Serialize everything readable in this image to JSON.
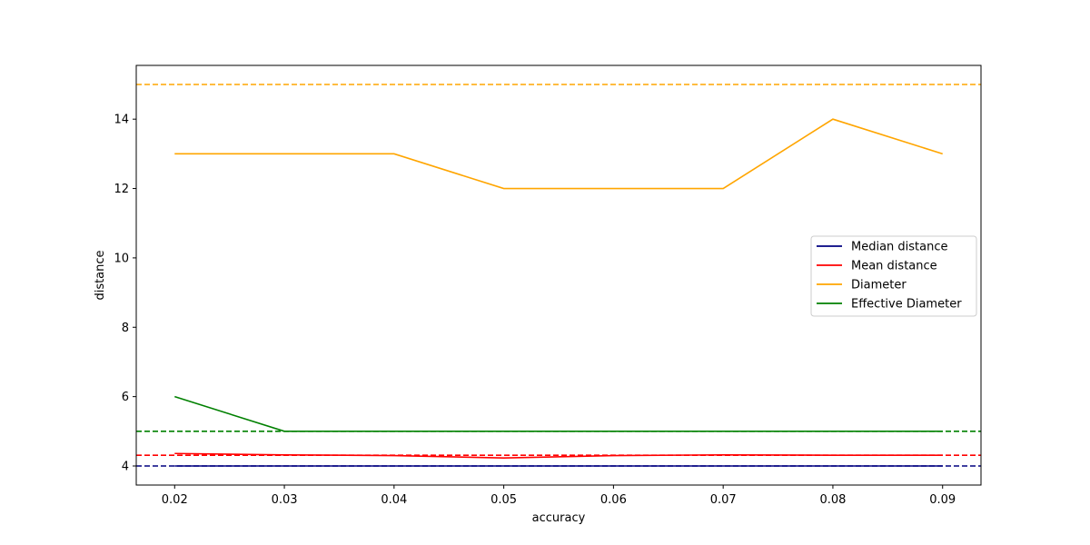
{
  "chart_data": {
    "type": "line",
    "title": "",
    "xlabel": "accuracy",
    "ylabel": "distance",
    "x": [
      0.02,
      0.03,
      0.04,
      0.05,
      0.06,
      0.07,
      0.08,
      0.09
    ],
    "xlim": [
      0.0165,
      0.0935
    ],
    "ylim": [
      3.45,
      15.55
    ],
    "xticks": [
      "0.02",
      "0.03",
      "0.04",
      "0.05",
      "0.06",
      "0.07",
      "0.08",
      "0.09"
    ],
    "yticks": [
      "4",
      "6",
      "8",
      "10",
      "12",
      "14"
    ],
    "grid": false,
    "legend_position": "center-right",
    "series": [
      {
        "name": "Median distance",
        "color": "#000080",
        "values": [
          4,
          4,
          4,
          4,
          4,
          4,
          4,
          4
        ]
      },
      {
        "name": "Mean distance",
        "color": "#ff0000",
        "values": [
          4.36,
          4.32,
          4.3,
          4.23,
          4.3,
          4.32,
          4.31,
          4.31
        ]
      },
      {
        "name": "Diameter",
        "color": "#ffa500",
        "values": [
          13,
          13,
          13,
          12,
          12,
          12,
          14,
          13
        ]
      },
      {
        "name": "Effective Diameter",
        "color": "#008000",
        "values": [
          6,
          5,
          5,
          5,
          5,
          5,
          5,
          5
        ]
      }
    ],
    "reference_lines": [
      {
        "y": 4,
        "color": "#000080",
        "style": "dashed"
      },
      {
        "y": 4.31,
        "color": "#ff0000",
        "style": "dashed"
      },
      {
        "y": 15,
        "color": "#ffa500",
        "style": "dashed"
      },
      {
        "y": 5,
        "color": "#008000",
        "style": "dashed"
      }
    ]
  }
}
